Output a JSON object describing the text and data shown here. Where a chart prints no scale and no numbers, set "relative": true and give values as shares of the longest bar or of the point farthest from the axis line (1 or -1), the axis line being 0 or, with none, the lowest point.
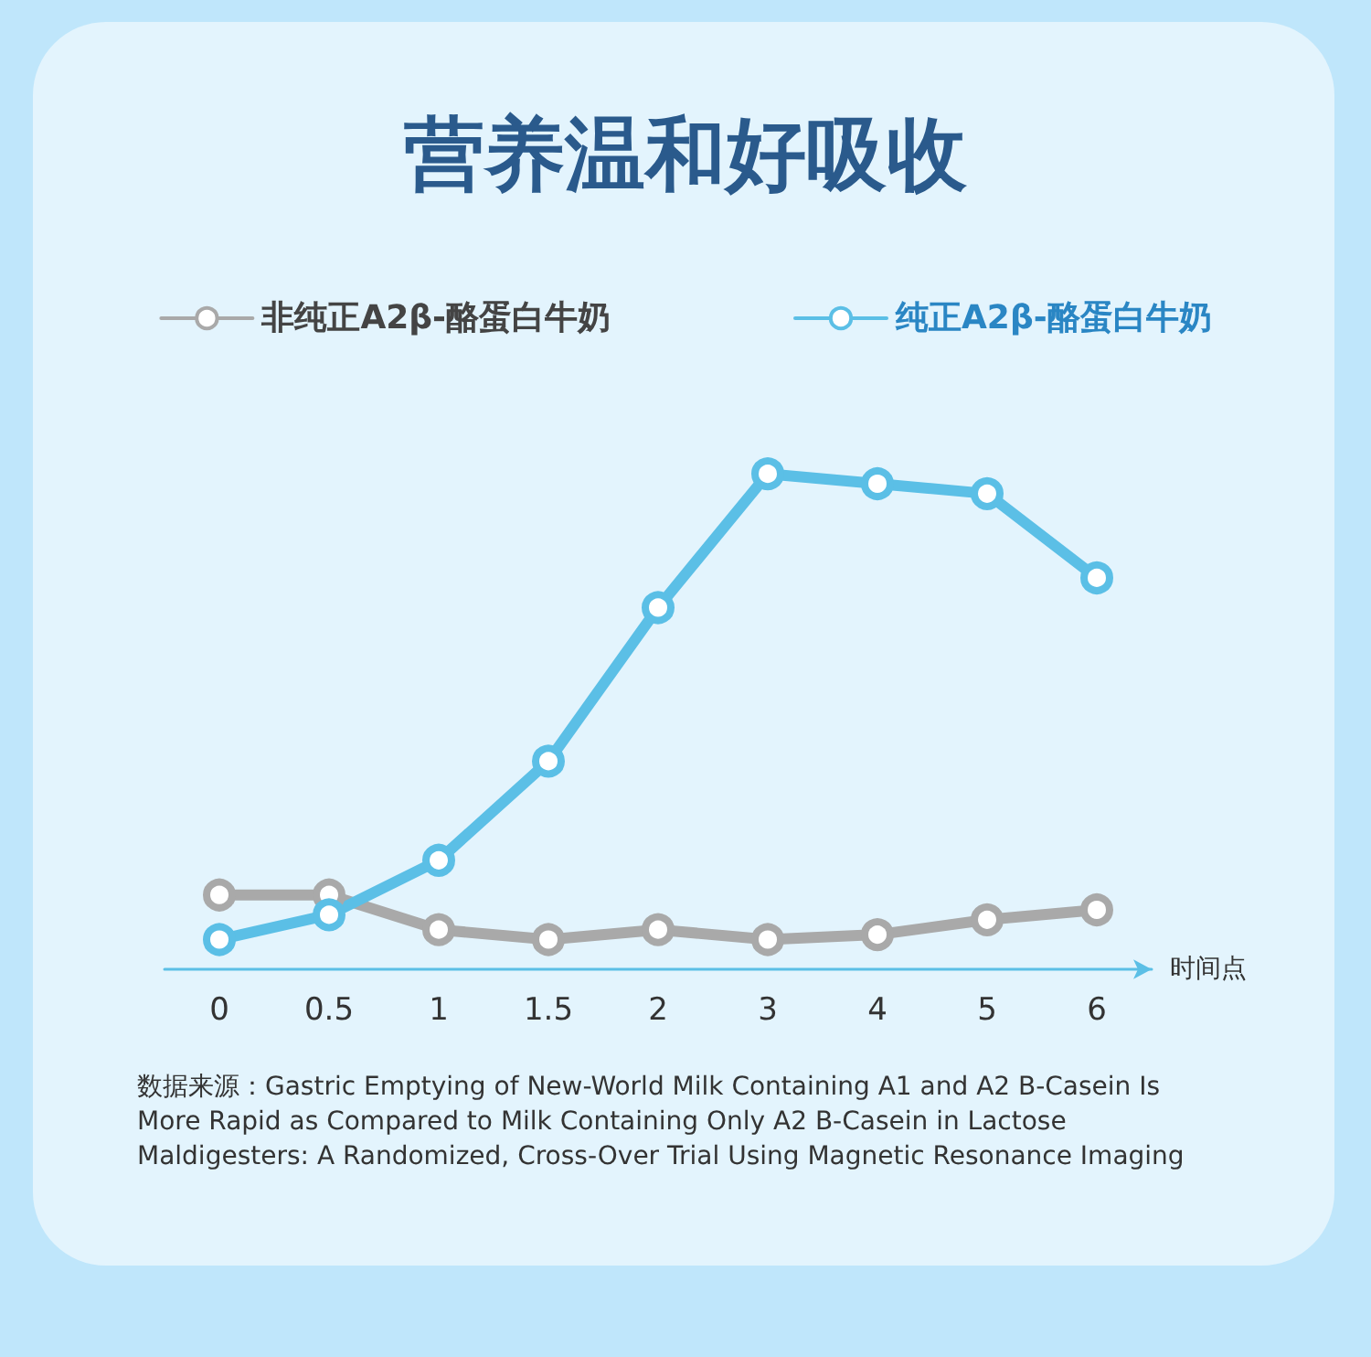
{
  "chart_data": {
    "type": "line",
    "title": "营养温和好吸收",
    "xlabel": "时间点",
    "relative": true,
    "categories": [
      "0",
      "0.5",
      "1",
      "1.5",
      "2",
      "3",
      "4",
      "5",
      "6"
    ],
    "series": [
      {
        "name": "非纯正A2β-酪蛋白牛奶",
        "color": "#a9a9a9",
        "values": [
          0.15,
          0.15,
          0.08,
          0.06,
          0.08,
          0.06,
          0.07,
          0.1,
          0.12
        ]
      },
      {
        "name": "纯正A2β-酪蛋白牛奶",
        "color": "#5bbfe6",
        "values": [
          0.06,
          0.11,
          0.22,
          0.42,
          0.73,
          1,
          0.98,
          0.96,
          0.79
        ]
      }
    ],
    "marker": "circle",
    "line_style": "solid",
    "grid": false,
    "legend": "top",
    "annotations": [
      "数据来源：Gastric Emptying of New-World Milk Containing A1 and A2 B-Casein Is More Rapid as Compared to Milk Containing Only A2 B-Casein in Lactose Maldigesters: A Randomized, Cross-Over Trial Using Magnetic Resonance Imaging"
    ]
  }
}
